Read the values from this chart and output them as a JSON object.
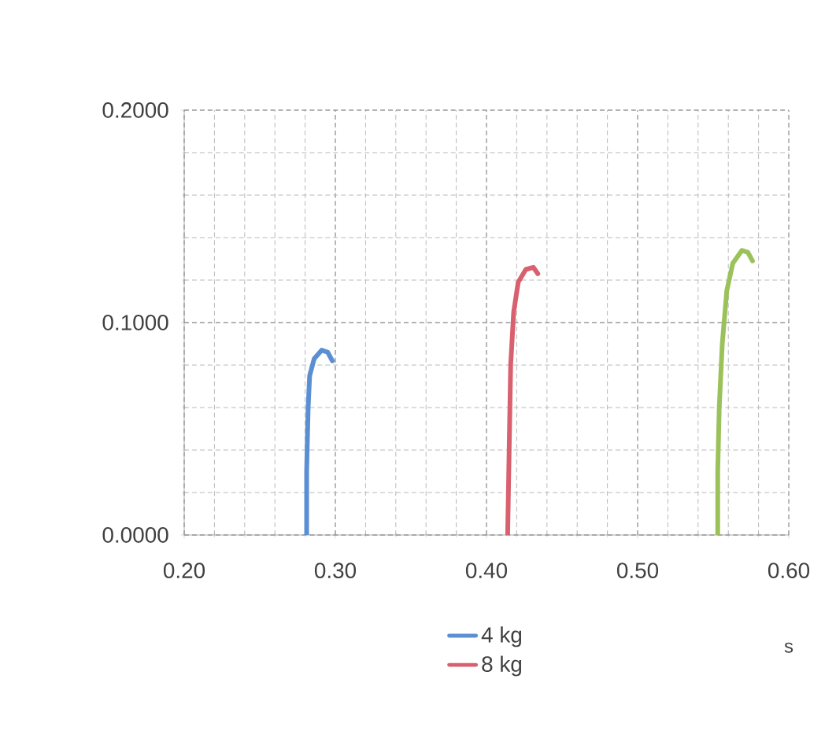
{
  "chart_data": {
    "type": "line",
    "xlabel": "s",
    "xlim": [
      0.2,
      0.6
    ],
    "xticks": [
      {
        "value": 0.2,
        "label": "0.20"
      },
      {
        "value": 0.3,
        "label": "0.30"
      },
      {
        "value": 0.4,
        "label": "0.40"
      },
      {
        "value": 0.5,
        "label": "0.50"
      },
      {
        "value": 0.6,
        "label": "0.60"
      }
    ],
    "ylim": [
      0,
      0.2
    ],
    "yticks": [
      {
        "value": 0,
        "label": "0.0000"
      },
      {
        "value": 0.1,
        "label": "0.1000"
      },
      {
        "value": 0.2,
        "label": "0.2000"
      }
    ],
    "grid": true,
    "legend": "bottom",
    "marker": "none",
    "line_style": "solid",
    "series": [
      {
        "name": "4 kg",
        "color": "#5b8fd4",
        "x": [
          0.281,
          0.281,
          0.282,
          0.283,
          0.286,
          0.291,
          0.295,
          0.298
        ],
        "values": [
          0,
          0.03,
          0.06,
          0.075,
          0.083,
          0.087,
          0.086,
          0.082
        ]
      },
      {
        "name": "8 kg",
        "color": "#d9606f",
        "x": [
          0.414,
          0.415,
          0.416,
          0.418,
          0.421,
          0.426,
          0.431,
          0.434
        ],
        "values": [
          0,
          0.04,
          0.08,
          0.105,
          0.119,
          0.125,
          0.126,
          0.123
        ]
      },
      {
        "color": "#9bc25a",
        "x": [
          0.553,
          0.553,
          0.554,
          0.556,
          0.559,
          0.563,
          0.569,
          0.573,
          0.576
        ],
        "values": [
          0,
          0.03,
          0.06,
          0.09,
          0.115,
          0.128,
          0.134,
          0.133,
          0.129
        ]
      }
    ]
  }
}
